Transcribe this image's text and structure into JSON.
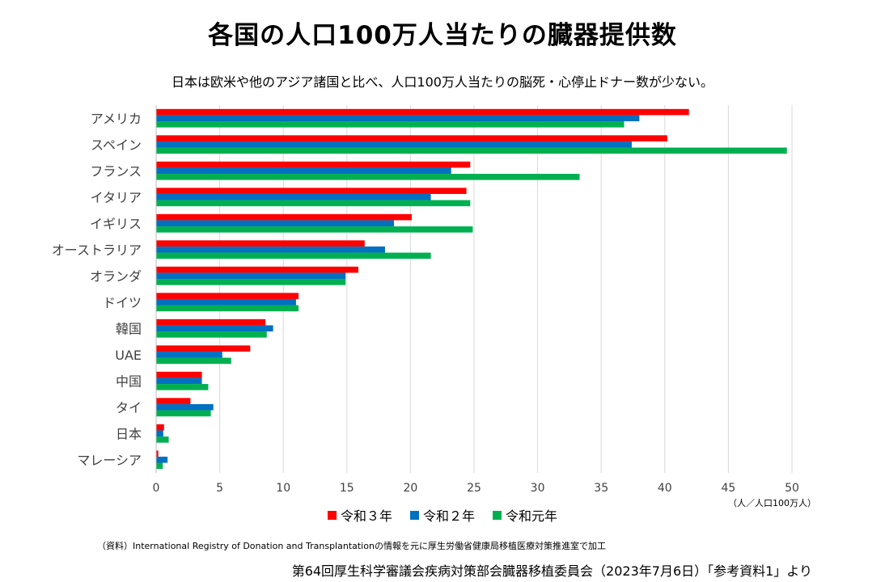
{
  "title": "各国の人口100万人当たりの臓器提供数",
  "subtitle": "日本は欧米や他のアジア諸国と比べ、人口100万人当たりの脳死・心停止ドナー数が少ない。",
  "unit_label": "（人／人口100万人）",
  "note": "（資料）International Registry of Donation and Transplantationの情報を元に厚生労働省健康局移植医療対策推進室で加工",
  "source": "第64回厚生科学審議会疾病対策部会臓器移植委員会（2023年7月6日）「参考資料1」より",
  "chart_data": {
    "type": "bar",
    "orientation": "horizontal",
    "categories": [
      "アメリカ",
      "スペイン",
      "フランス",
      "イタリア",
      "イギリス",
      "オーストラリア",
      "オランダ",
      "ドイツ",
      "韓国",
      "UAE",
      "中国",
      "タイ",
      "日本",
      "マレーシア"
    ],
    "series": [
      {
        "name": "令和３年",
        "color": "#ff0000",
        "values": [
          41.9,
          40.2,
          24.7,
          24.4,
          20.1,
          16.4,
          15.9,
          11.2,
          8.6,
          7.4,
          3.6,
          2.7,
          0.62,
          0.17
        ]
      },
      {
        "name": "令和２年",
        "color": "#0070c0",
        "values": [
          38.0,
          37.4,
          23.2,
          21.6,
          18.7,
          18.0,
          14.9,
          11.0,
          9.2,
          5.2,
          3.6,
          4.5,
          0.56,
          0.9
        ]
      },
      {
        "name": "令和元年",
        "color": "#00b050",
        "values": [
          36.8,
          49.6,
          33.3,
          24.7,
          24.9,
          21.6,
          14.9,
          11.2,
          8.7,
          5.9,
          4.1,
          4.3,
          0.99,
          0.52
        ]
      }
    ],
    "xlim": [
      0,
      50
    ],
    "xticks": [
      0,
      5,
      10,
      15,
      20,
      25,
      30,
      35,
      40,
      45,
      50
    ],
    "grid": true,
    "legend_position": "bottom"
  }
}
